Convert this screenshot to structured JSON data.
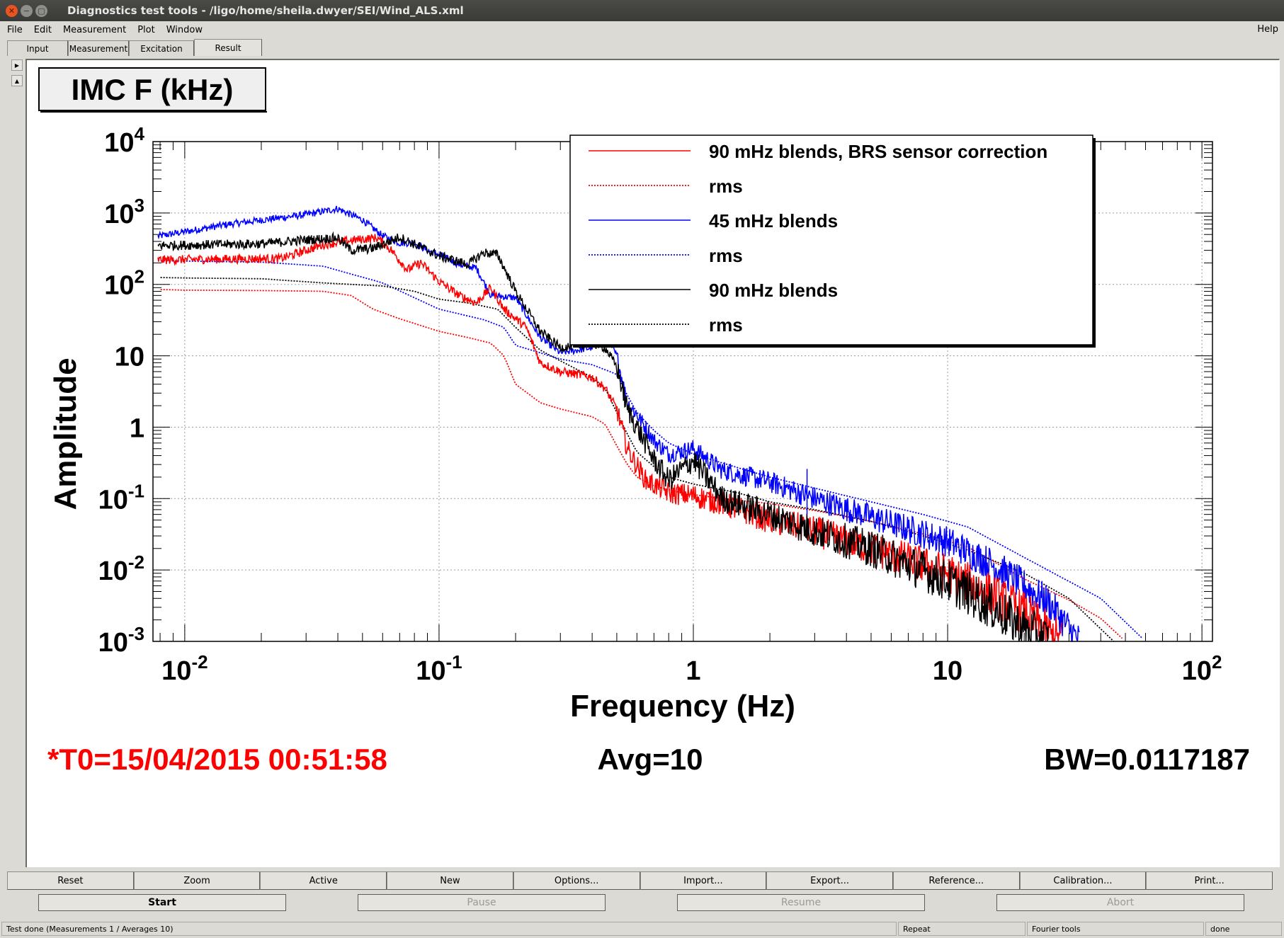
{
  "window": {
    "title": "Diagnostics test tools - /ligo/home/sheila.dwyer/SEI/Wind_ALS.xml"
  },
  "menu": {
    "items": [
      "File",
      "Edit",
      "Measurement",
      "Plot",
      "Window"
    ],
    "help": "Help"
  },
  "tabs": [
    {
      "label": "Input"
    },
    {
      "label": "Measurement"
    },
    {
      "label": "Excitation"
    },
    {
      "label": "Result",
      "active": true
    }
  ],
  "plot_info": {
    "t0": "*T0=15/04/2015 00:51:58",
    "avg": "Avg=10",
    "bw": "BW=0.0117187",
    "t0_color": "#ff0000"
  },
  "chart_data": {
    "type": "line",
    "title": "IMC F (kHz)",
    "xlabel": "Frequency (Hz)",
    "ylabel": "Amplitude",
    "xscale": "log",
    "yscale": "log",
    "xlim": [
      0.0075,
      110
    ],
    "ylim": [
      0.001,
      10000
    ],
    "x_ticks": [
      {
        "value": 0.01,
        "base": "10",
        "exp": "-2"
      },
      {
        "value": 0.1,
        "base": "10",
        "exp": "-1"
      },
      {
        "value": 1,
        "base": "1",
        "exp": ""
      },
      {
        "value": 10,
        "base": "10",
        "exp": ""
      },
      {
        "value": 100,
        "base": "10",
        "exp": "2"
      }
    ],
    "y_ticks": [
      {
        "value": 10000,
        "base": "10",
        "exp": "4"
      },
      {
        "value": 1000,
        "base": "10",
        "exp": "3"
      },
      {
        "value": 100,
        "base": "10",
        "exp": "2"
      },
      {
        "value": 10,
        "base": "10",
        "exp": ""
      },
      {
        "value": 1,
        "base": "1",
        "exp": ""
      },
      {
        "value": 0.1,
        "base": "10",
        "exp": "-1"
      },
      {
        "value": 0.01,
        "base": "10",
        "exp": "-2"
      },
      {
        "value": 0.001,
        "base": "10",
        "exp": "-3"
      }
    ],
    "grid": true,
    "legend_position": "top-right",
    "series": [
      {
        "name": "90 mHz blends, BRS sensor correction",
        "color": "#ff0000",
        "dash": "solid",
        "noise": 0.28,
        "points": [
          [
            0.0078,
            220
          ],
          [
            0.012,
            225
          ],
          [
            0.024,
            230
          ],
          [
            0.035,
            360
          ],
          [
            0.047,
            420
          ],
          [
            0.057,
            450
          ],
          [
            0.065,
            300
          ],
          [
            0.075,
            160
          ],
          [
            0.085,
            200
          ],
          [
            0.1,
            110
          ],
          [
            0.12,
            70
          ],
          [
            0.14,
            55
          ],
          [
            0.16,
            90
          ],
          [
            0.18,
            45
          ],
          [
            0.22,
            25
          ],
          [
            0.25,
            8
          ],
          [
            0.3,
            6
          ],
          [
            0.35,
            5.5
          ],
          [
            0.4,
            5
          ],
          [
            0.45,
            3.5
          ],
          [
            0.5,
            1.8
          ],
          [
            0.55,
            0.5
          ],
          [
            0.65,
            0.18
          ],
          [
            0.8,
            0.12
          ],
          [
            1.0,
            0.11
          ],
          [
            1.3,
            0.085
          ],
          [
            2,
            0.05
          ],
          [
            3,
            0.035
          ],
          [
            5,
            0.02
          ],
          [
            10,
            0.009
          ],
          [
            15,
            0.0045
          ],
          [
            20,
            0.0025
          ],
          [
            25,
            0.0013
          ],
          [
            28,
            0.001
          ]
        ]
      },
      {
        "name": "rms",
        "color": "#ff0000",
        "dash": "dotted",
        "noise": 0,
        "points": [
          [
            0.0078,
            85
          ],
          [
            0.01,
            83
          ],
          [
            0.02,
            82
          ],
          [
            0.035,
            80
          ],
          [
            0.045,
            70
          ],
          [
            0.055,
            45
          ],
          [
            0.07,
            33
          ],
          [
            0.1,
            22
          ],
          [
            0.13,
            18
          ],
          [
            0.16,
            15
          ],
          [
            0.18,
            10
          ],
          [
            0.2,
            4
          ],
          [
            0.25,
            2.2
          ],
          [
            0.3,
            1.8
          ],
          [
            0.4,
            1.4
          ],
          [
            0.45,
            1.1
          ],
          [
            0.5,
            0.55
          ],
          [
            0.55,
            0.3
          ],
          [
            0.6,
            0.2
          ],
          [
            0.7,
            0.15
          ],
          [
            0.9,
            0.12
          ],
          [
            1.3,
            0.1
          ],
          [
            2,
            0.085
          ],
          [
            3,
            0.068
          ],
          [
            5,
            0.048
          ],
          [
            8,
            0.032
          ],
          [
            12,
            0.021
          ],
          [
            20,
            0.0075
          ],
          [
            30,
            0.0038
          ],
          [
            40,
            0.0021
          ],
          [
            50,
            0.001
          ]
        ]
      },
      {
        "name": "45 mHz blends",
        "color": "#0000ff",
        "dash": "solid",
        "noise": 0.22,
        "points": [
          [
            0.0078,
            470
          ],
          [
            0.015,
            700
          ],
          [
            0.03,
            950
          ],
          [
            0.04,
            1150
          ],
          [
            0.05,
            800
          ],
          [
            0.06,
            480
          ],
          [
            0.07,
            380
          ],
          [
            0.08,
            380
          ],
          [
            0.09,
            300
          ],
          [
            0.1,
            260
          ],
          [
            0.12,
            190
          ],
          [
            0.14,
            170
          ],
          [
            0.16,
            70
          ],
          [
            0.2,
            65
          ],
          [
            0.25,
            18
          ],
          [
            0.3,
            11
          ],
          [
            0.35,
            12
          ],
          [
            0.4,
            13
          ],
          [
            0.45,
            19
          ],
          [
            0.5,
            10
          ],
          [
            0.55,
            2.2
          ],
          [
            0.6,
            1.5
          ],
          [
            0.7,
            0.65
          ],
          [
            0.8,
            0.42
          ],
          [
            1.0,
            0.5
          ],
          [
            1.3,
            0.25
          ],
          [
            2,
            0.17
          ],
          [
            3,
            0.1
          ],
          [
            5,
            0.055
          ],
          [
            10,
            0.025
          ],
          [
            15,
            0.012
          ],
          [
            20,
            0.006
          ],
          [
            25,
            0.0035
          ],
          [
            30,
            0.0015
          ],
          [
            33,
            0.001
          ]
        ]
      },
      {
        "name": "rms",
        "color": "#0000ff",
        "dash": "dotted",
        "noise": 0,
        "points": [
          [
            0.0078,
            215
          ],
          [
            0.01,
            212
          ],
          [
            0.02,
            205
          ],
          [
            0.035,
            180
          ],
          [
            0.045,
            140
          ],
          [
            0.06,
            105
          ],
          [
            0.08,
            65
          ],
          [
            0.1,
            45
          ],
          [
            0.15,
            32
          ],
          [
            0.18,
            25
          ],
          [
            0.2,
            14
          ],
          [
            0.25,
            11
          ],
          [
            0.3,
            9
          ],
          [
            0.4,
            7.5
          ],
          [
            0.5,
            5.5
          ],
          [
            0.55,
            2.8
          ],
          [
            0.6,
            1.6
          ],
          [
            0.7,
            0.9
          ],
          [
            0.8,
            0.6
          ],
          [
            1,
            0.42
          ],
          [
            1.5,
            0.27
          ],
          [
            2,
            0.2
          ],
          [
            3,
            0.14
          ],
          [
            5,
            0.09
          ],
          [
            8,
            0.06
          ],
          [
            12,
            0.04
          ],
          [
            20,
            0.015
          ],
          [
            40,
            0.004
          ],
          [
            60,
            0.001
          ]
        ]
      },
      {
        "name": "90 mHz blends",
        "color": "#000000",
        "dash": "solid",
        "noise": 0.3,
        "points": [
          [
            0.0078,
            350
          ],
          [
            0.02,
            370
          ],
          [
            0.03,
            420
          ],
          [
            0.04,
            450
          ],
          [
            0.045,
            300
          ],
          [
            0.055,
            320
          ],
          [
            0.07,
            460
          ],
          [
            0.085,
            330
          ],
          [
            0.1,
            250
          ],
          [
            0.13,
            190
          ],
          [
            0.15,
            280
          ],
          [
            0.17,
            260
          ],
          [
            0.2,
            80
          ],
          [
            0.25,
            22
          ],
          [
            0.3,
            13
          ],
          [
            0.35,
            14
          ],
          [
            0.4,
            15
          ],
          [
            0.45,
            13
          ],
          [
            0.5,
            7
          ],
          [
            0.55,
            1.8
          ],
          [
            0.6,
            1.0
          ],
          [
            0.7,
            0.35
          ],
          [
            0.8,
            0.18
          ],
          [
            1.0,
            0.35
          ],
          [
            1.3,
            0.1
          ],
          [
            2,
            0.06
          ],
          [
            3,
            0.035
          ],
          [
            5,
            0.02
          ],
          [
            10,
            0.007
          ],
          [
            15,
            0.003
          ],
          [
            20,
            0.0015
          ],
          [
            25,
            0.001
          ]
        ]
      },
      {
        "name": "rms",
        "color": "#000000",
        "dash": "dotted",
        "noise": 0,
        "points": [
          [
            0.0078,
            125
          ],
          [
            0.01,
            123
          ],
          [
            0.02,
            120
          ],
          [
            0.035,
            105
          ],
          [
            0.045,
            100
          ],
          [
            0.06,
            95
          ],
          [
            0.08,
            80
          ],
          [
            0.1,
            62
          ],
          [
            0.13,
            55
          ],
          [
            0.17,
            45
          ],
          [
            0.2,
            25
          ],
          [
            0.25,
            12
          ],
          [
            0.3,
            8.5
          ],
          [
            0.4,
            5
          ],
          [
            0.45,
            3.5
          ],
          [
            0.5,
            1.6
          ],
          [
            0.55,
            0.8
          ],
          [
            0.6,
            0.45
          ],
          [
            0.7,
            0.28
          ],
          [
            0.8,
            0.2
          ],
          [
            1,
            0.16
          ],
          [
            1.5,
            0.12
          ],
          [
            2,
            0.09
          ],
          [
            3,
            0.07
          ],
          [
            5,
            0.048
          ],
          [
            8,
            0.03
          ],
          [
            12,
            0.019
          ],
          [
            20,
            0.009
          ],
          [
            30,
            0.004
          ],
          [
            45,
            0.001
          ]
        ]
      }
    ]
  },
  "buttons_row1": [
    "Reset",
    "Zoom",
    "Active",
    "New",
    "Options...",
    "Import...",
    "Export...",
    "Reference...",
    "Calibration...",
    "Print..."
  ],
  "buttons_row2": [
    {
      "label": "Start",
      "enabled": true
    },
    {
      "label": "Pause",
      "enabled": false
    },
    {
      "label": "Resume",
      "enabled": false
    },
    {
      "label": "Abort",
      "enabled": false
    }
  ],
  "status": {
    "message": "Test done (Measurements 1 / Averages 10)",
    "mode": "Repeat",
    "tool": "Fourier tools",
    "state": "done"
  }
}
